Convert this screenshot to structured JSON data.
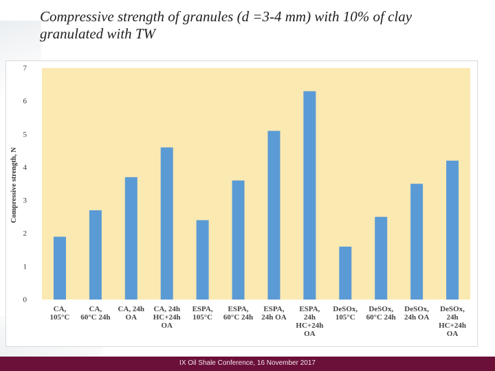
{
  "slide": {
    "title": "Compressive strength of granules (d =3-4 mm) with 10% of clay granulated with TW",
    "footer": "IX Oil Shale Conference, 16 November 2017"
  },
  "colors": {
    "plot_background": "#fbe9b2",
    "bar": "#5b9bd5",
    "footer_background": "#6b1038"
  },
  "chart_data": {
    "type": "bar",
    "title": "Compressive strength of granules (d =3-4 mm) with 10% of clay granulated with TW",
    "xlabel": "",
    "ylabel": "Compressive strength, N",
    "ylim": [
      0,
      7
    ],
    "yticks": [
      "0",
      "1",
      "2",
      "3",
      "4",
      "5",
      "6",
      "7"
    ],
    "grid": false,
    "categories": [
      [
        "CA,",
        "105°C"
      ],
      [
        "CA,",
        "60°C 24h"
      ],
      [
        "CA, 24h",
        "OA"
      ],
      [
        "CA, 24h",
        "HC+24h",
        "OA"
      ],
      [
        "ESPA,",
        "105°C"
      ],
      [
        "ESPA,",
        "60°C 24h"
      ],
      [
        "ESPA,",
        "24h OA"
      ],
      [
        "ESPA,",
        "24h",
        "HC+24h",
        "OA"
      ],
      [
        "DeSOx,",
        "105°C"
      ],
      [
        "DeSOx,",
        "60°C 24h"
      ],
      [
        "DeSOx,",
        "24h OA"
      ],
      [
        "DeSOx,",
        "24h",
        "HC+24h",
        "OA"
      ]
    ],
    "values": [
      1.9,
      2.7,
      3.7,
      4.6,
      2.4,
      3.6,
      5.1,
      6.3,
      1.6,
      2.5,
      3.5,
      4.2
    ]
  }
}
